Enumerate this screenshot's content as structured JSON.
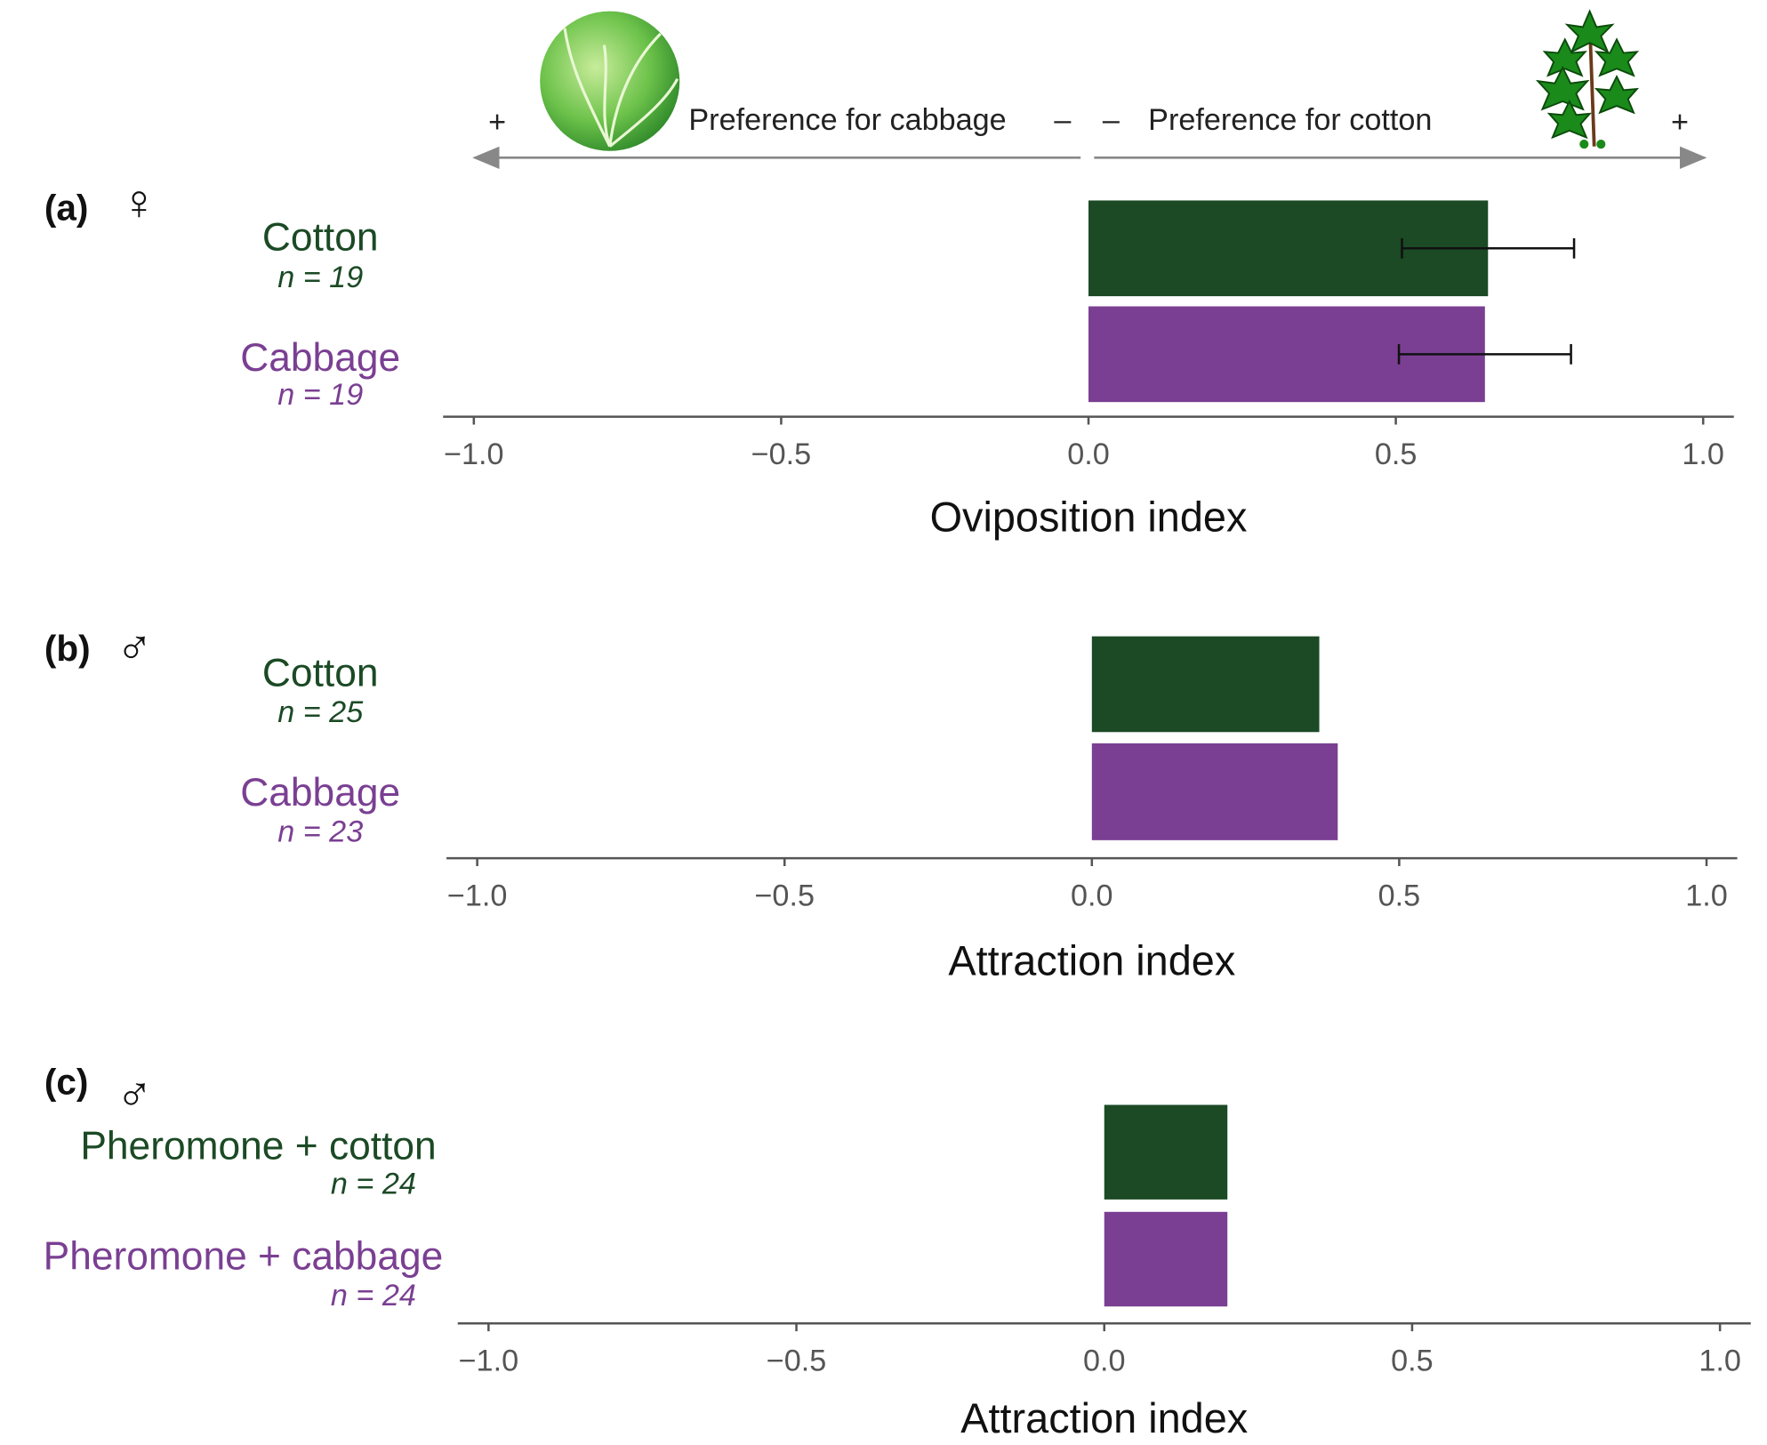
{
  "annotations": {
    "left_plus": "+",
    "left_label": "Preference for cabbage",
    "left_minus": "–",
    "right_minus": "–",
    "right_label": "Preference for cotton",
    "right_plus": "+"
  },
  "chart_data": [
    {
      "type": "bar",
      "orientation": "horizontal",
      "panel_label": "(a)",
      "sex_symbol": "♀",
      "x_label": "Oviposition index",
      "categories": [
        "Cotton",
        "Cabbage"
      ],
      "sample_sizes": [
        "n = 19",
        "n = 19"
      ],
      "values": [
        0.65,
        0.645
      ],
      "errors": [
        0.14,
        0.14
      ],
      "colors": [
        "#1b4a25",
        "#7a3f92"
      ],
      "xlim": [
        -1.05,
        1.05
      ],
      "xticks": [
        {
          "value": -1.0,
          "label": "−1.0"
        },
        {
          "value": -0.5,
          "label": "−0.5"
        },
        {
          "value": 0,
          "label": "0.0"
        },
        {
          "value": 0.5,
          "label": "0.5"
        },
        {
          "value": 1.0,
          "label": "1.0"
        }
      ]
    },
    {
      "type": "bar",
      "orientation": "horizontal",
      "panel_label": "(b)",
      "sex_symbol": "♂",
      "x_label": "Attraction index",
      "categories": [
        "Cotton",
        "Cabbage"
      ],
      "sample_sizes": [
        "n = 25",
        "n = 23"
      ],
      "values": [
        0.37,
        0.4
      ],
      "colors": [
        "#1b4a25",
        "#7a3f92"
      ],
      "xlim": [
        -1.05,
        1.05
      ],
      "xticks": [
        {
          "value": -1.0,
          "label": "−1.0"
        },
        {
          "value": -0.5,
          "label": "−0.5"
        },
        {
          "value": 0,
          "label": "0.0"
        },
        {
          "value": 0.5,
          "label": "0.5"
        },
        {
          "value": 1.0,
          "label": "1.0"
        }
      ]
    },
    {
      "type": "bar",
      "orientation": "horizontal",
      "panel_label": "(c)",
      "sex_symbol": "♂",
      "x_label": "Attraction index",
      "categories": [
        "Pheromone + cotton",
        "Pheromone + cabbage"
      ],
      "sample_sizes": [
        "n = 24",
        "n = 24"
      ],
      "values": [
        0.2,
        0.2
      ],
      "colors": [
        "#1b4a25",
        "#7a3f92"
      ],
      "xlim": [
        -1.05,
        1.05
      ],
      "xticks": [
        {
          "value": -1.0,
          "label": "−1.0"
        },
        {
          "value": -0.5,
          "label": "−0.5"
        },
        {
          "value": 0,
          "label": "0.0"
        },
        {
          "value": 0.5,
          "label": "0.5"
        },
        {
          "value": 1.0,
          "label": "1.0"
        }
      ]
    }
  ]
}
